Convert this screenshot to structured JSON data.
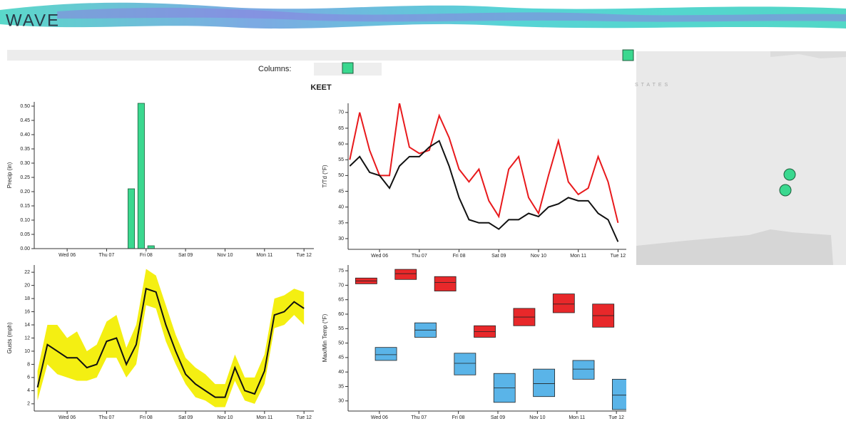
{
  "header": {
    "title": "WAVE"
  },
  "controls": {
    "columns_label": "Columns:"
  },
  "station": "KEET",
  "map": {
    "label": "STATES"
  },
  "chart_data": [
    {
      "type": "bar",
      "ylabel": "Precip (in)",
      "color": "#3ad88f",
      "x": [
        39,
        45,
        51
      ],
      "values": [
        0.21,
        0.51,
        0.01
      ],
      "xlim": [
        -20,
        150
      ],
      "ylim": [
        0,
        0.515
      ],
      "xticks": [
        {
          "value": 0,
          "label": "Wed 06"
        },
        {
          "value": 24,
          "label": "Thu 07"
        },
        {
          "value": 48,
          "label": "Fri 08"
        },
        {
          "value": 72,
          "label": "Sat 09"
        },
        {
          "value": 96,
          "label": "Nov 10"
        },
        {
          "value": 120,
          "label": "Mon 11"
        },
        {
          "value": 144,
          "label": "Tue 12"
        }
      ],
      "yticks": [
        {
          "value": 0,
          "label": "0.00"
        },
        {
          "value": 0.05,
          "label": "0.05"
        },
        {
          "value": 0.1,
          "label": "0.10"
        },
        {
          "value": 0.15,
          "label": "0.15"
        },
        {
          "value": 0.2,
          "label": "0.20"
        },
        {
          "value": 0.25,
          "label": "0.25"
        },
        {
          "value": 0.3,
          "label": "0.30"
        },
        {
          "value": 0.35,
          "label": "0.35"
        },
        {
          "value": 0.4,
          "label": "0.40"
        },
        {
          "value": 0.45,
          "label": "0.45"
        },
        {
          "value": 0.5,
          "label": "0.50"
        }
      ]
    },
    {
      "type": "line",
      "ylabel": "T/Td (°F)",
      "x": [
        -18,
        -12,
        -6,
        0,
        6,
        12,
        18,
        24,
        30,
        36,
        42,
        48,
        54,
        60,
        66,
        72,
        78,
        84,
        90,
        96,
        102,
        108,
        114,
        120,
        126,
        132,
        138,
        144
      ],
      "series": [
        {
          "color": "#e8191c",
          "values": [
            55,
            70,
            58,
            50,
            50,
            73,
            59,
            57,
            58,
            69,
            62,
            52,
            48,
            52,
            42,
            37,
            52,
            56,
            43,
            38,
            50,
            61,
            48,
            44,
            46,
            56,
            48,
            35
          ]
        },
        {
          "color": "#111111",
          "values": [
            53,
            56,
            51,
            50,
            46,
            53,
            56,
            56,
            59,
            61,
            53,
            43,
            36,
            35,
            35,
            33,
            36,
            36,
            38,
            37,
            40,
            41,
            43,
            42,
            42,
            38,
            36,
            29
          ]
        }
      ],
      "xlim": [
        -19,
        149
      ],
      "ylim": [
        26.6,
        72.9
      ],
      "xticks": [
        {
          "value": 0,
          "label": "Wed 06"
        },
        {
          "value": 24,
          "label": "Thu 07"
        },
        {
          "value": 48,
          "label": "Fri 08"
        },
        {
          "value": 72,
          "label": "Sat 09"
        },
        {
          "value": 96,
          "label": "Nov 10"
        },
        {
          "value": 120,
          "label": "Mon 11"
        },
        {
          "value": 144,
          "label": "Tue 12"
        }
      ],
      "yticks": [
        30,
        35,
        40,
        45,
        50,
        55,
        60,
        65,
        70
      ]
    },
    {
      "type": "line",
      "ylabel": "Gusts (mph)",
      "x": [
        -18,
        -12,
        -6,
        0,
        6,
        12,
        18,
        24,
        30,
        36,
        42,
        48,
        54,
        60,
        66,
        72,
        78,
        84,
        90,
        96,
        102,
        108,
        114,
        120,
        126,
        132,
        138,
        144
      ],
      "band": {
        "color": "#f4ef12",
        "low": [
          2.5,
          8,
          6.5,
          6,
          5.5,
          5.5,
          6,
          9,
          9,
          6,
          8,
          17,
          16.5,
          11.5,
          8,
          5,
          3,
          2.5,
          1.5,
          1.5,
          5.5,
          2.5,
          2,
          5,
          13.5,
          14,
          15.5,
          14
        ],
        "high": [
          7,
          14,
          14,
          12,
          13,
          10,
          11,
          14.5,
          15.5,
          10.5,
          14,
          22.5,
          21.5,
          17,
          12.5,
          9,
          7.5,
          6.5,
          5,
          5,
          9.5,
          6,
          6,
          9.5,
          18,
          18.5,
          19.5,
          19
        ]
      },
      "series": [
        {
          "color": "#111111",
          "values": [
            4.5,
            11,
            10,
            9,
            9,
            7.5,
            8,
            11.5,
            12,
            8,
            11,
            19.5,
            19,
            14,
            10,
            6.5,
            5,
            4,
            3,
            3,
            7.5,
            4,
            3.5,
            7,
            15.5,
            16,
            17.5,
            16.5
          ]
        }
      ],
      "xlim": [
        -20,
        150
      ],
      "ylim": [
        0.9,
        23.1
      ],
      "xticks": [
        {
          "value": 0,
          "label": "Wed 06"
        },
        {
          "value": 24,
          "label": "Thu 07"
        },
        {
          "value": 48,
          "label": "Fri 08"
        },
        {
          "value": 72,
          "label": "Sat 09"
        },
        {
          "value": 96,
          "label": "Nov 10"
        },
        {
          "value": 120,
          "label": "Mon 11"
        },
        {
          "value": 144,
          "label": "Tue 12"
        }
      ],
      "yticks": [
        2,
        4,
        6,
        8,
        10,
        12,
        14,
        16,
        18,
        20,
        22
      ]
    },
    {
      "type": "box",
      "ylabel": "Max/Min Temp (°F)",
      "series": [
        {
          "color": "#e8282a",
          "x": [
            -8,
            16,
            40,
            64,
            88,
            112,
            136
          ],
          "low": [
            70.5,
            72,
            68,
            52,
            56,
            60.5,
            55.5
          ],
          "median": [
            71.5,
            74,
            71,
            54,
            59,
            63.5,
            59.5
          ],
          "high": [
            72.5,
            75.5,
            73,
            56,
            62,
            67,
            63.5
          ]
        },
        {
          "color": "#5ab4e8",
          "x": [
            4,
            28,
            52,
            76,
            100,
            124,
            148
          ],
          "low": [
            44,
            52,
            39,
            29.5,
            31.5,
            37.5,
            27
          ],
          "median": [
            46,
            54.5,
            43,
            34.5,
            36,
            41,
            32
          ],
          "high": [
            48.5,
            57,
            46.5,
            39.5,
            41,
            44,
            37.5
          ]
        }
      ],
      "xlim": [
        -19,
        150
      ],
      "ylim": [
        26.5,
        77
      ],
      "xticks": [
        {
          "value": 0,
          "label": "Wed 06"
        },
        {
          "value": 24,
          "label": "Thu 07"
        },
        {
          "value": 48,
          "label": "Fri 08"
        },
        {
          "value": 72,
          "label": "Sat 09"
        },
        {
          "value": 96,
          "label": "Nov 10"
        },
        {
          "value": 120,
          "label": "Mon 11"
        },
        {
          "value": 144,
          "label": "Tue 12"
        }
      ],
      "yticks": [
        30,
        35,
        40,
        45,
        50,
        55,
        60,
        65,
        70,
        75
      ]
    }
  ]
}
